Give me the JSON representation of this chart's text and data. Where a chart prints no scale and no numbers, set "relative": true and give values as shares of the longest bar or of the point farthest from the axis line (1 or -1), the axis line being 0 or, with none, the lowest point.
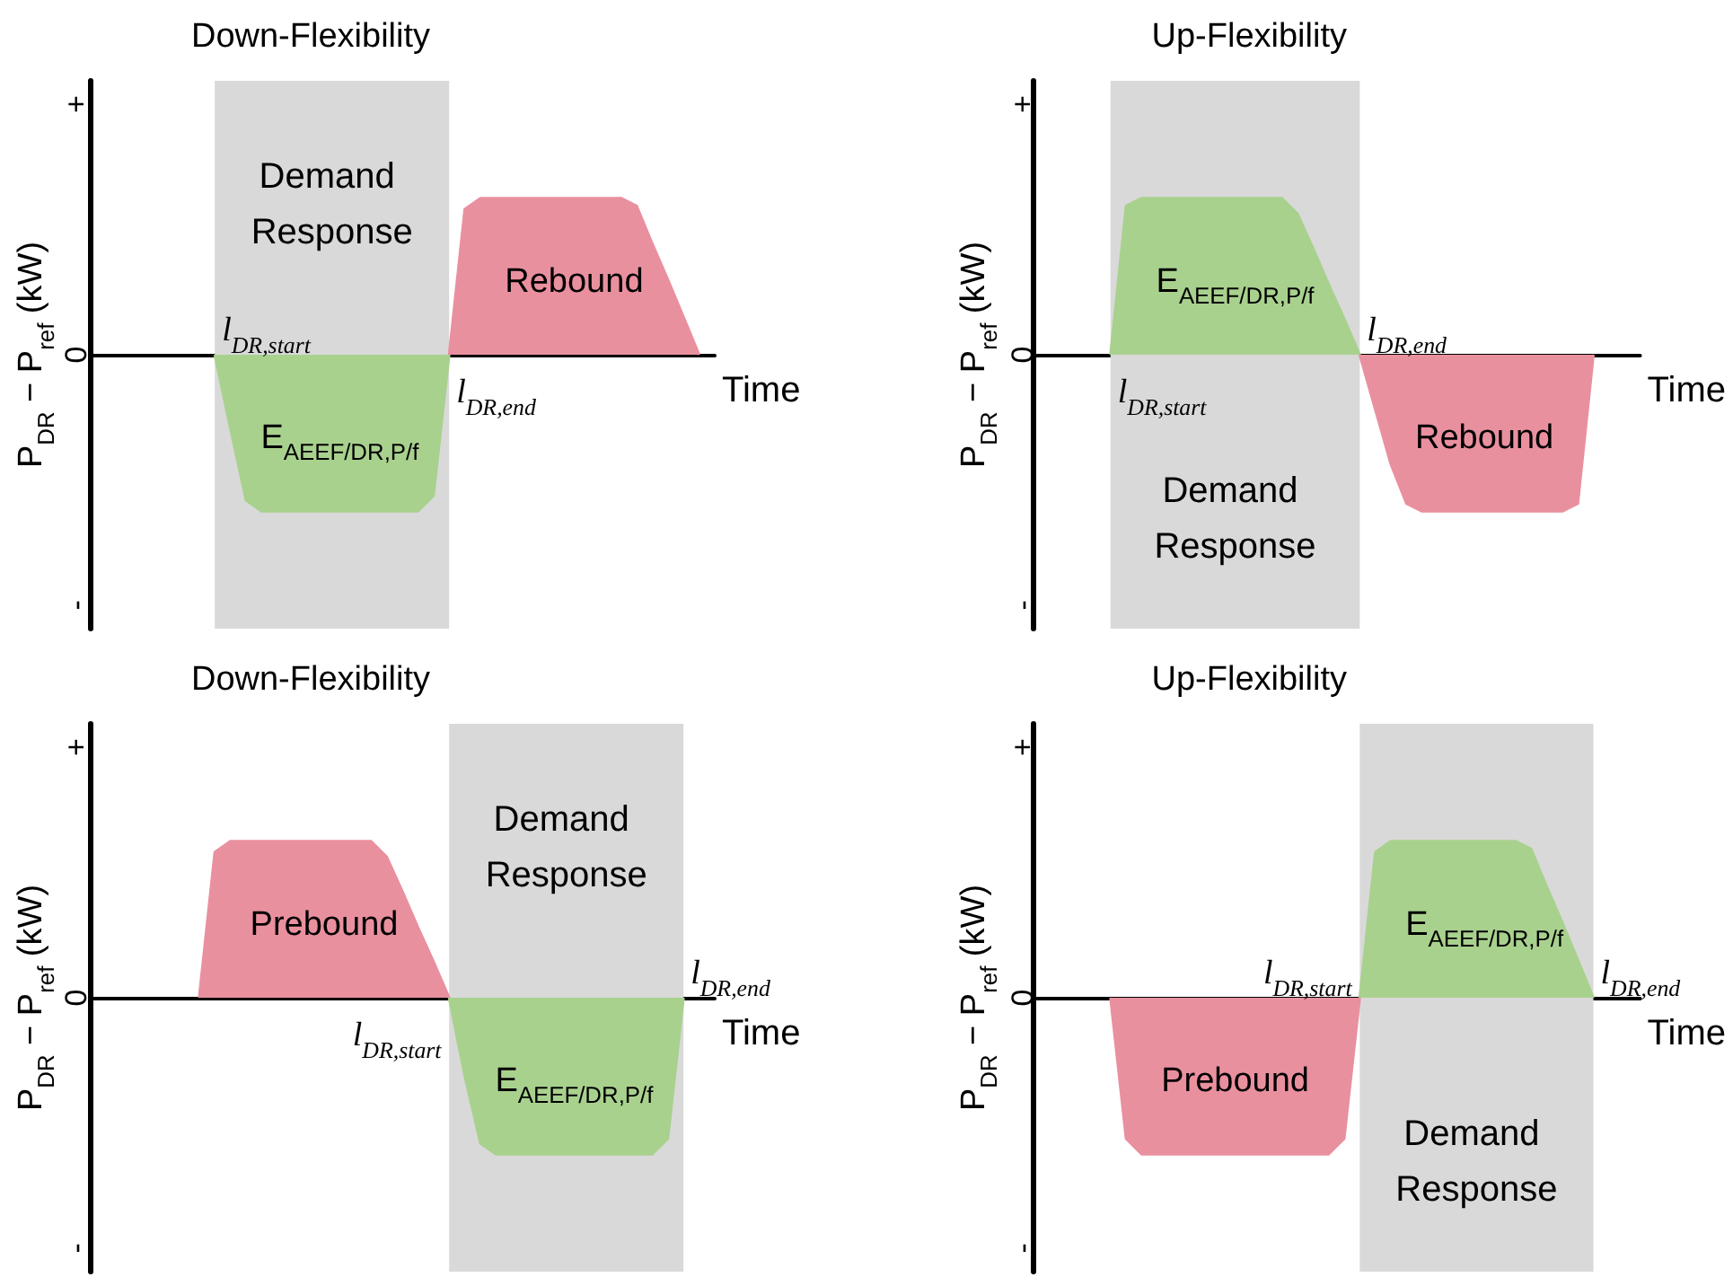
{
  "chart_data": [
    {
      "type": "area",
      "title": "Down-Flexibility",
      "xlabel": "Time",
      "ylabel": "P$_{DR}$ − P$_{ref}$ (kW)",
      "relative": true,
      "grid": false,
      "legend": false,
      "annotations": [
        "+",
        "0",
        "-",
        "l$_{DR,start}$",
        "l$_{DR,end}$",
        "Demand Response"
      ],
      "categories": [
        null,
        null,
        null,
        null,
        null,
        null,
        null,
        null,
        null,
        null,
        null,
        null,
        null,
        null,
        null,
        null,
        null,
        null,
        null,
        null,
        null,
        null,
        null,
        null,
        null,
        null,
        null,
        null,
        null,
        null,
        null,
        null,
        null,
        null,
        null,
        null,
        null,
        null,
        null,
        null,
        null
      ],
      "series": [
        {
          "name": "E$_{AEEF/DR,P/f}$",
          "color": "#a9d18e",
          "values": [
            null,
            null,
            null,
            null,
            null,
            null,
            null,
            null,
            0,
            -0.47,
            -0.93,
            -1,
            -1,
            -1,
            -1,
            -1,
            -1,
            -1,
            -1,
            -1,
            -1,
            -1,
            -0.9,
            0,
            null,
            null,
            null,
            null,
            null,
            null,
            null,
            null,
            null,
            null,
            null,
            null,
            null,
            null,
            null,
            null,
            null
          ]
        },
        {
          "name": "Rebound",
          "color": "#e9909f",
          "values": [
            null,
            null,
            null,
            null,
            null,
            null,
            null,
            null,
            null,
            null,
            null,
            null,
            null,
            null,
            null,
            null,
            null,
            null,
            null,
            null,
            null,
            null,
            null,
            0,
            0.93,
            1,
            1,
            1,
            1,
            1,
            1,
            1,
            1,
            1,
            1,
            0.95,
            0.71,
            0.48,
            0.24,
            0,
            null
          ]
        }
      ]
    },
    {
      "type": "area",
      "title": "Up-Flexibility",
      "xlabel": "Time",
      "ylabel": "P$_{DR}$ − P$_{ref}$ (kW)",
      "relative": true,
      "grid": false,
      "legend": false,
      "annotations": [
        "+",
        "0",
        "-",
        "l$_{DR,start}$",
        "l$_{DR,end}$",
        "Demand Response"
      ],
      "categories": [
        null,
        null,
        null,
        null,
        null,
        null,
        null,
        null,
        null,
        null,
        null,
        null,
        null,
        null,
        null,
        null,
        null,
        null,
        null,
        null,
        null,
        null,
        null,
        null,
        null,
        null,
        null,
        null,
        null,
        null,
        null,
        null,
        null,
        null,
        null,
        null,
        null,
        null,
        null,
        null
      ],
      "series": [
        {
          "name": "E$_{AEEF/DR,P/f}$",
          "color": "#a9d18e",
          "values": [
            null,
            null,
            null,
            null,
            null,
            0,
            0.95,
            1,
            1,
            1,
            1,
            1,
            1,
            1,
            1,
            1,
            1,
            0.9,
            0.68,
            0.45,
            0.23,
            0,
            null,
            null,
            null,
            null,
            null,
            null,
            null,
            null,
            null,
            null,
            null,
            null,
            null,
            null,
            null,
            null,
            null,
            null
          ]
        },
        {
          "name": "Rebound",
          "color": "#e9909f",
          "values": [
            null,
            null,
            null,
            null,
            null,
            null,
            null,
            null,
            null,
            null,
            null,
            null,
            null,
            null,
            null,
            null,
            null,
            null,
            null,
            null,
            null,
            0,
            -0.35,
            -0.7,
            -0.95,
            -1,
            -1,
            -1,
            -1,
            -1,
            -1,
            -1,
            -1,
            -1,
            -1,
            -0.95,
            0,
            null,
            null,
            null
          ]
        }
      ]
    },
    {
      "type": "area",
      "title": "Down-Flexibility",
      "xlabel": "Time",
      "ylabel": "P$_{DR}$ − P$_{ref}$ (kW)",
      "relative": true,
      "grid": false,
      "legend": false,
      "annotations": [
        "+",
        "0",
        "-",
        "l$_{DR,start}$",
        "l$_{DR,end}$",
        "Demand Response"
      ],
      "categories": [
        null,
        null,
        null,
        null,
        null,
        null,
        null,
        null,
        null,
        null,
        null,
        null,
        null,
        null,
        null,
        null,
        null,
        null,
        null,
        null,
        null,
        null,
        null,
        null,
        null,
        null,
        null,
        null,
        null,
        null,
        null,
        null,
        null,
        null,
        null,
        null,
        null,
        null,
        null,
        null,
        null
      ],
      "series": [
        {
          "name": "E$_{AEEF/DR,P/f}$",
          "color": "#a9d18e",
          "values": [
            null,
            null,
            null,
            null,
            null,
            null,
            null,
            null,
            null,
            null,
            null,
            null,
            null,
            null,
            null,
            null,
            null,
            null,
            null,
            null,
            null,
            null,
            null,
            0,
            -0.5,
            -0.93,
            -1,
            -1,
            -1,
            -1,
            -1,
            -1,
            -1,
            -1,
            -1,
            -1,
            -1,
            -0.9,
            0,
            null,
            null
          ]
        },
        {
          "name": "Prebound",
          "color": "#e9909f",
          "values": [
            null,
            null,
            null,
            null,
            null,
            null,
            null,
            0,
            0.93,
            1,
            1,
            1,
            1,
            1,
            1,
            1,
            1,
            1,
            1,
            0.9,
            0.68,
            0.45,
            0.23,
            0,
            null,
            null,
            null,
            null,
            null,
            null,
            null,
            null,
            null,
            null,
            null,
            null,
            null,
            null,
            null,
            null,
            null
          ]
        }
      ]
    },
    {
      "type": "area",
      "title": "Up-Flexibility",
      "xlabel": "Time",
      "ylabel": "P$_{DR}$ − P$_{ref}$ (kW)",
      "relative": true,
      "grid": false,
      "legend": false,
      "annotations": [
        "+",
        "0",
        "-",
        "l$_{DR,start}$",
        "l$_{DR,end}$",
        "Demand Response"
      ],
      "categories": [
        null,
        null,
        null,
        null,
        null,
        null,
        null,
        null,
        null,
        null,
        null,
        null,
        null,
        null,
        null,
        null,
        null,
        null,
        null,
        null,
        null,
        null,
        null,
        null,
        null,
        null,
        null,
        null,
        null,
        null,
        null,
        null,
        null,
        null,
        null,
        null,
        null,
        null,
        null,
        null
      ],
      "series": [
        {
          "name": "E$_{AEEF/DR,P/f}$",
          "color": "#a9d18e",
          "values": [
            null,
            null,
            null,
            null,
            null,
            null,
            null,
            null,
            null,
            null,
            null,
            null,
            null,
            null,
            null,
            null,
            null,
            null,
            null,
            null,
            null,
            0,
            0.93,
            1,
            1,
            1,
            1,
            1,
            1,
            1,
            1,
            1,
            0.95,
            0.71,
            0.48,
            0.24,
            0,
            null,
            null,
            null
          ]
        },
        {
          "name": "Prebound",
          "color": "#e9909f",
          "values": [
            null,
            null,
            null,
            null,
            null,
            0,
            -0.9,
            -1,
            -1,
            -1,
            -1,
            -1,
            -1,
            -1,
            -1,
            -1,
            -1,
            -1,
            -1,
            -1,
            -0.9,
            0,
            null,
            null,
            null,
            null,
            null,
            null,
            null,
            null,
            null,
            null,
            null,
            null,
            null,
            null,
            null,
            null,
            null,
            null
          ]
        }
      ]
    }
  ]
}
